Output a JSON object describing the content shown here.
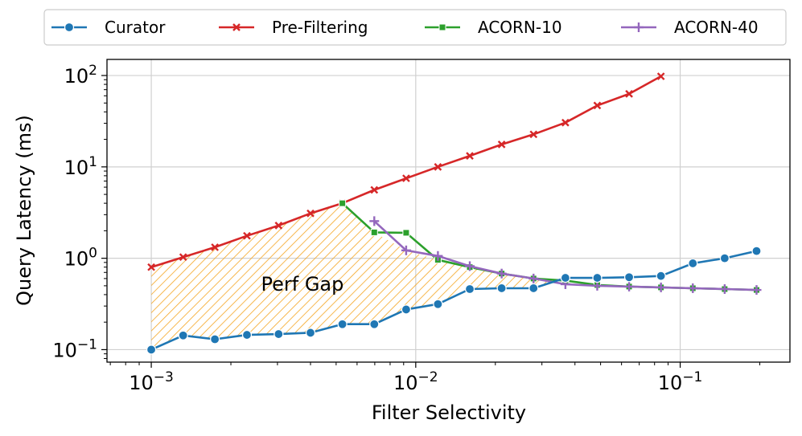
{
  "chart_data": {
    "type": "line",
    "xscale": "log",
    "yscale": "log",
    "xlabel": "Filter Selectivity",
    "ylabel": "Query Latency (ms)",
    "xlim": [
      0.00068,
      0.26
    ],
    "ylim": [
      0.073,
      150
    ],
    "grid": true,
    "legend_position": "top-center",
    "xticks": [
      {
        "value": 0.001,
        "base": "10",
        "exp": "−3"
      },
      {
        "value": 0.01,
        "base": "10",
        "exp": "−2"
      },
      {
        "value": 0.1,
        "base": "10",
        "exp": "−1"
      }
    ],
    "yticks": [
      {
        "value": 0.1,
        "base": "10",
        "exp": "−1"
      },
      {
        "value": 1,
        "base": "10",
        "exp": "0"
      },
      {
        "value": 10,
        "base": "10",
        "exp": "1"
      },
      {
        "value": 100,
        "base": "10",
        "exp": "2"
      }
    ],
    "series": [
      {
        "name": "Curator",
        "color": "#1f77b4",
        "marker": "circle",
        "x": [
          0.001,
          0.00132,
          0.00174,
          0.0023,
          0.00303,
          0.004,
          0.00528,
          0.00697,
          0.0092,
          0.01213,
          0.01601,
          0.02113,
          0.02789,
          0.03681,
          0.04857,
          0.0641,
          0.08458,
          0.11163,
          0.14731,
          0.19441
        ],
        "values": [
          0.1,
          0.143,
          0.13,
          0.145,
          0.148,
          0.153,
          0.19,
          0.19,
          0.275,
          0.315,
          0.46,
          0.47,
          0.47,
          0.61,
          0.61,
          0.62,
          0.64,
          0.88,
          1.0,
          1.2
        ]
      },
      {
        "name": "Pre-Filtering",
        "color": "#d62728",
        "marker": "x",
        "x": [
          0.001,
          0.00132,
          0.00174,
          0.0023,
          0.00303,
          0.004,
          0.00528,
          0.00697,
          0.0092,
          0.01213,
          0.01601,
          0.02113,
          0.02789,
          0.03681,
          0.04857,
          0.0641,
          0.08458
        ],
        "values": [
          0.8,
          1.03,
          1.32,
          1.76,
          2.28,
          3.1,
          4.0,
          5.6,
          7.5,
          10.0,
          13.2,
          17.6,
          22.7,
          30.5,
          47.0,
          63.0,
          98.0
        ]
      },
      {
        "name": "ACORN-10",
        "color": "#2ca02c",
        "marker": "square",
        "x": [
          0.00528,
          0.00697,
          0.0092,
          0.01213,
          0.01601,
          0.02113,
          0.02789,
          0.03681,
          0.04857,
          0.0641,
          0.08458,
          0.11163,
          0.14731,
          0.19441
        ],
        "values": [
          4.0,
          1.92,
          1.9,
          0.96,
          0.8,
          0.68,
          0.6,
          0.57,
          0.51,
          0.49,
          0.48,
          0.47,
          0.46,
          0.45
        ]
      },
      {
        "name": "ACORN-40",
        "color": "#9467bd",
        "marker": "plus",
        "x": [
          0.00697,
          0.0092,
          0.01213,
          0.01601,
          0.02113,
          0.02789,
          0.03681,
          0.04857,
          0.0641,
          0.08458,
          0.11163,
          0.14731,
          0.19441
        ],
        "values": [
          2.55,
          1.22,
          1.06,
          0.82,
          0.68,
          0.6,
          0.52,
          0.5,
          0.49,
          0.48,
          0.47,
          0.46,
          0.45
        ]
      }
    ],
    "annotations": [
      {
        "text": "Perf Gap",
        "x": 0.0026,
        "y": 0.52,
        "fill": "hatched",
        "fill_color": "#f5a623",
        "between": [
          "Pre-Filtering / ACORN",
          "Curator"
        ]
      }
    ]
  }
}
